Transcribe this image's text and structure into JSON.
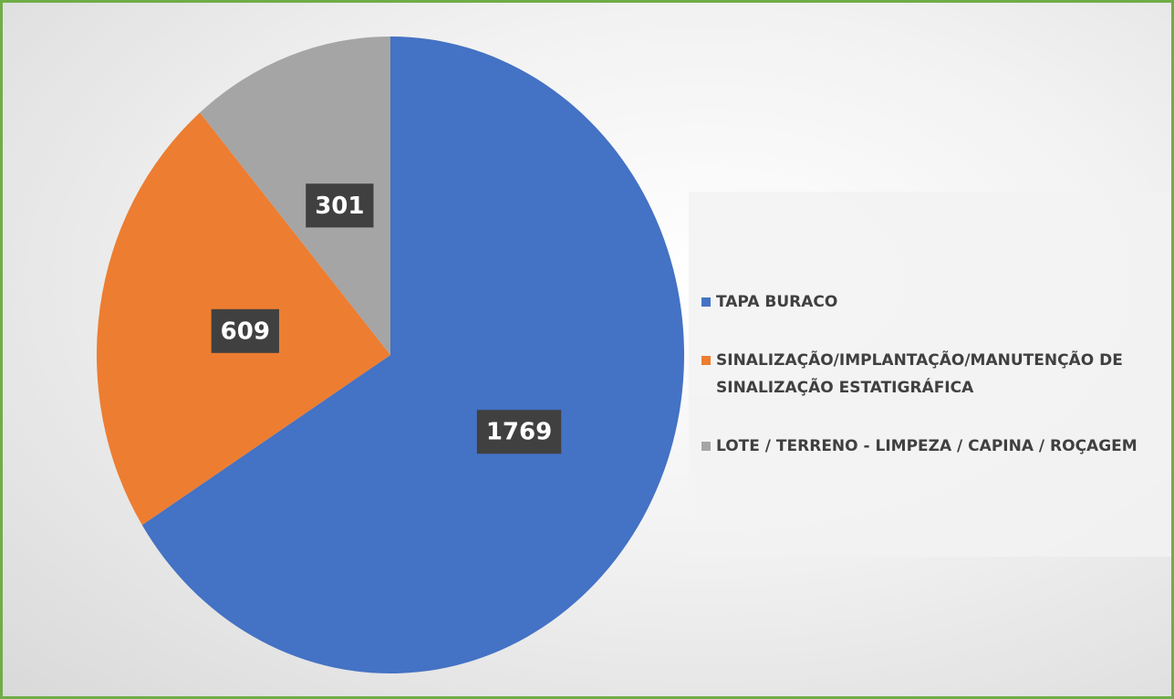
{
  "chart_data": {
    "type": "pie",
    "categories": [
      "TAPA BURACO",
      "SINALIZAÇÃO/IMPLANTAÇÃO/MANUTENÇÃO DE SINALIZAÇÃO ESTATIGRÁFICA",
      "LOTE / TERRENO - LIMPEZA / CAPINA / ROÇAGEM"
    ],
    "values": [
      1769,
      609,
      301
    ],
    "colors": [
      "#4472c4",
      "#ed7d31",
      "#a5a5a5"
    ]
  }
}
